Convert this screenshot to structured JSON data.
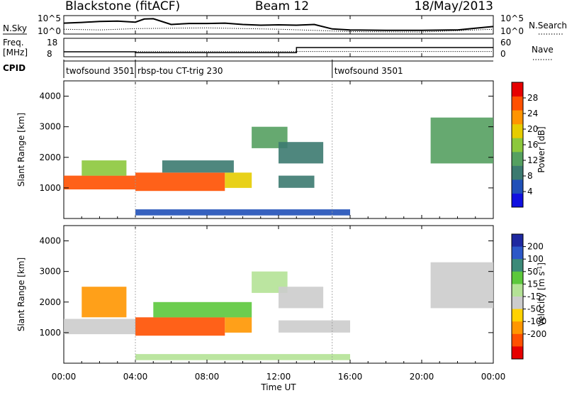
{
  "header": {
    "station": "Blackstone (fitACF)",
    "beam": "Beam 12",
    "date": "18/May/2013"
  },
  "strip_labels": {
    "nsky": "N.Sky",
    "nsky_ticks": [
      "10^5",
      "10^0"
    ],
    "nsearch": "N.Search",
    "nsearch_ticks": [
      "10^5",
      "10^0"
    ],
    "freq_line1": "Freq.",
    "freq_line2": "[MHz]",
    "freq_ticks": [
      "18",
      "8"
    ],
    "nave": "Nave",
    "nave_ticks": [
      "60",
      "0"
    ],
    "cpid": "CPID"
  },
  "cpid_segments": [
    {
      "label": "twofsound 3501",
      "start_hour": 0
    },
    {
      "label": "rbsp-tou CT-trig 230",
      "start_hour": 4
    },
    {
      "label": "twofsound 3501",
      "start_hour": 15
    }
  ],
  "axes": {
    "ylabel": "Slant Range [km]",
    "yticks": [
      "1000",
      "2000",
      "3000",
      "4000"
    ],
    "xlabel": "Time UT",
    "xticks": [
      "00:00",
      "04:00",
      "08:00",
      "12:00",
      "16:00",
      "20:00",
      "00:00"
    ]
  },
  "power_colorbar": {
    "label": "Power [dB]",
    "ticks": [
      "4",
      "8",
      "12",
      "16",
      "20",
      "24",
      "28"
    ],
    "colors": [
      "#1010e0",
      "#2050b8",
      "#3c7a70",
      "#55a060",
      "#8cc83c",
      "#e6cc00",
      "#ff9400",
      "#ff5000",
      "#e60000"
    ]
  },
  "velocity_colorbar": {
    "label_main": "Velocity [m s",
    "label_sup": "-1",
    "label_end": "]",
    "ticks": [
      "200",
      "100",
      "50",
      "15",
      "-15",
      "-50",
      "-100",
      "-200"
    ],
    "colors": [
      "#1e28a0",
      "#2c58c8",
      "#3c8a78",
      "#5cc83c",
      "#b4e296",
      "#cccccc",
      "#ffd200",
      "#ff9600",
      "#ff5000",
      "#e60000"
    ]
  },
  "chart_data": [
    {
      "type": "line",
      "title": "Blackstone (fitACF)",
      "series": [
        {
          "name": "N.Sky",
          "x": [
            0,
            1,
            2,
            3,
            4,
            4.5,
            5,
            6,
            7,
            8,
            9,
            10,
            11,
            12,
            13,
            14,
            15,
            16,
            18,
            20,
            22,
            23,
            24
          ],
          "y": [
            3.0,
            3.2,
            3.5,
            3.6,
            3.3,
            4.2,
            4.3,
            2.6,
            2.9,
            2.9,
            3.0,
            2.6,
            2.4,
            2.5,
            2.4,
            2.6,
            1.3,
            1.0,
            0.9,
            0.9,
            1.0,
            1.5,
            2.0
          ]
        },
        {
          "name": "N.Search",
          "x": [
            0,
            2,
            4,
            8,
            12,
            15,
            16,
            20,
            22,
            24
          ],
          "y": [
            1.2,
            1.0,
            1.4,
            1.6,
            1.2,
            0.7,
            0.5,
            0.4,
            0.8,
            1.2
          ]
        }
      ],
      "xlim": [
        0,
        24
      ],
      "ylim": [
        0,
        5
      ]
    },
    {
      "type": "line",
      "series": [
        {
          "name": "Freq.",
          "x": [
            0,
            4,
            4,
            13,
            13,
            24
          ],
          "y": [
            10.5,
            10.5,
            10.0,
            10.0,
            13.0,
            13.0
          ]
        },
        {
          "name": "Nave",
          "x": [
            0,
            4,
            4,
            24
          ],
          "y": [
            15,
            15,
            16,
            16
          ]
        }
      ],
      "xlim": [
        0,
        24
      ],
      "ylim": [
        8,
        18
      ]
    },
    {
      "type": "heatmap",
      "quantity": "Power [dB]",
      "xlim": [
        0,
        24
      ],
      "ylim": [
        0,
        4500
      ],
      "clim": [
        0,
        32
      ],
      "regions": [
        {
          "x": [
            0.0,
            4.0
          ],
          "y": [
            950,
            1400
          ],
          "value": 26
        },
        {
          "x": [
            1.0,
            3.5
          ],
          "y": [
            1400,
            1900
          ],
          "value": 15
        },
        {
          "x": [
            4.0,
            9.0
          ],
          "y": [
            900,
            1500
          ],
          "value": 27
        },
        {
          "x": [
            9.0,
            10.5
          ],
          "y": [
            1000,
            1500
          ],
          "value": 18
        },
        {
          "x": [
            5.5,
            9.5
          ],
          "y": [
            1500,
            1900
          ],
          "value": 10
        },
        {
          "x": [
            10.5,
            12.5
          ],
          "y": [
            2300,
            3000
          ],
          "value": 14
        },
        {
          "x": [
            12.0,
            14.5
          ],
          "y": [
            1800,
            2500
          ],
          "value": 9
        },
        {
          "x": [
            12.0,
            14.0
          ],
          "y": [
            1000,
            1400
          ],
          "value": 8
        },
        {
          "x": [
            20.5,
            24.0
          ],
          "y": [
            1800,
            3300
          ],
          "value": 12
        },
        {
          "x": [
            4.0,
            16.0
          ],
          "y": [
            100,
            300
          ],
          "value": 7
        }
      ]
    },
    {
      "type": "heatmap",
      "quantity": "Velocity [m s-1]",
      "xlim": [
        0,
        24
      ],
      "ylim": [
        0,
        4500
      ],
      "clim": [
        -200,
        200
      ],
      "regions": [
        {
          "x": [
            0.0,
            4.0
          ],
          "y": [
            950,
            1450
          ],
          "value": 0
        },
        {
          "x": [
            1.0,
            3.5
          ],
          "y": [
            1500,
            2500
          ],
          "value": -60
        },
        {
          "x": [
            4.0,
            9.0
          ],
          "y": [
            900,
            1500
          ],
          "value": -180
        },
        {
          "x": [
            9.0,
            10.5
          ],
          "y": [
            1000,
            1500
          ],
          "value": -80
        },
        {
          "x": [
            5.0,
            10.5
          ],
          "y": [
            1500,
            2000
          ],
          "value": 60
        },
        {
          "x": [
            10.5,
            12.5
          ],
          "y": [
            2300,
            3000
          ],
          "value": 30
        },
        {
          "x": [
            12.0,
            14.5
          ],
          "y": [
            1800,
            2500
          ],
          "value": 0
        },
        {
          "x": [
            12.0,
            16.0
          ],
          "y": [
            1000,
            1400
          ],
          "value": 0
        },
        {
          "x": [
            20.5,
            24.0
          ],
          "y": [
            1800,
            3300
          ],
          "value": 0
        },
        {
          "x": [
            4.0,
            16.0
          ],
          "y": [
            100,
            300
          ],
          "value": 20
        }
      ]
    }
  ]
}
